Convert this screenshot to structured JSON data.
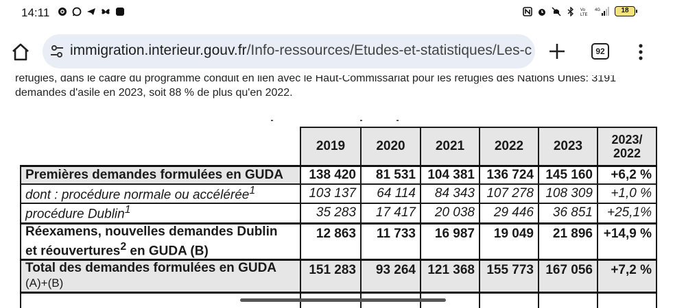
{
  "status_bar": {
    "time": "14:11",
    "battery": "18",
    "left_icons": [
      "gear-icon",
      "whatsapp-icon",
      "telegram-icon",
      "butterfly-icon",
      "app-icon"
    ],
    "right_icons": [
      "nfc-icon",
      "alarm-icon",
      "mute-icon",
      "bluetooth-icon",
      "volte-icon",
      "signal-icon"
    ]
  },
  "browser": {
    "url_host": "immigration.interieur.gouv.fr",
    "url_path": "/Info-ressources/Etudes-et-statistiques/Les-c",
    "tab_count": "92"
  },
  "page": {
    "paragraph_line1": "réfugiés, dans le cadre du programme conduit en lien avec le Haut-Commissariat pour les réfugiés des Nations Unies: 3191",
    "paragraph_line2": "demandes d'asile en 2023, soit 88 % de plus qu'en 2022."
  },
  "table": {
    "headers": [
      "2019",
      "2020",
      "2021",
      "2022",
      "2023",
      "2023/",
      "2022"
    ],
    "rows": [
      {
        "label": "Premières demandes formulées en GUDA",
        "values": [
          "138 420",
          "81 531",
          "104 381",
          "136 724",
          "145 160",
          "+6,2 %"
        ]
      },
      {
        "label": "dont : procédure normale ou accélérée",
        "sup": "1",
        "values": [
          "103 137",
          "64 114",
          "84 343",
          "107 278",
          "108 309",
          "+1,0 %"
        ]
      },
      {
        "label": "procédure Dublin",
        "sup": "1",
        "values": [
          "35 283",
          "17 417",
          "20 038",
          "29 446",
          "36 851",
          "+25,1%"
        ]
      },
      {
        "label_a": "Réexamens, nouvelles demandes Dublin",
        "label_b": "et réouvertures",
        "sup": "2",
        "label_c": " en GUDA (B)",
        "values": [
          "12 863",
          "11 733",
          "16 987",
          "19 049",
          "21 896",
          "+14,9 %"
        ]
      },
      {
        "label_a": "Total des demandes formulées en GUDA",
        "label_b": "(A)+(B)",
        "values": [
          "151 283",
          "93 264",
          "121 368",
          "155 773",
          "167 056",
          "+7,2 %"
        ]
      }
    ]
  }
}
